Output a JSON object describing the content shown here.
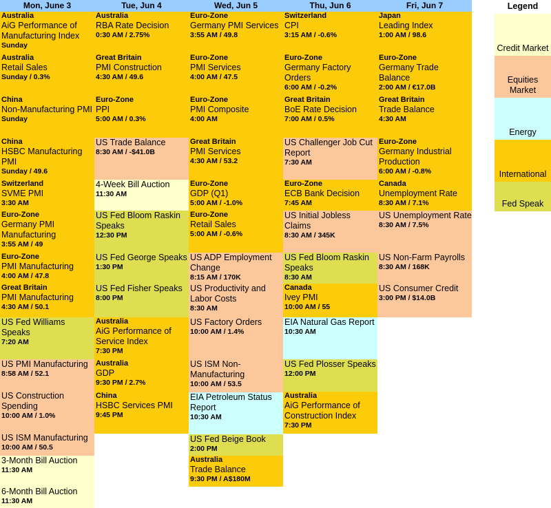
{
  "days": [
    "Mon, June 3",
    "Tue, Jun 4",
    "Wed, Jun 5",
    "Thu, Jun 6",
    "Fri, Jun 7"
  ],
  "legend": {
    "title": "Legend",
    "items": [
      {
        "label": "Credit Market",
        "color": "#ffffcc"
      },
      {
        "label": "Equities Market",
        "color": "#fcc89b"
      },
      {
        "label": "Energy",
        "color": "#ccffff"
      },
      {
        "label": "International",
        "color": "#fccb0a"
      },
      {
        "label": "Fed Speak",
        "color": "#dede50"
      }
    ]
  },
  "columns": [
    [
      {
        "region": "Australia",
        "title": "AiG Performance of Manufacturing Index",
        "time": "Sunday",
        "cat": "international"
      },
      {
        "region": "Australia",
        "title": "Retail Sales",
        "time": "Sunday / 0.3%",
        "cat": "international"
      },
      {
        "region": "China",
        "title": "Non-Manufacturing PMI",
        "time": "Sunday",
        "cat": "international"
      },
      {
        "region": "China",
        "title": " HSBC Manufacturing PMI",
        "time": "Sunday / 49.6",
        "cat": "international"
      },
      {
        "region": "Switzerland",
        "title": "SVME PMI",
        "time": "3:30 AM",
        "cat": "international"
      },
      {
        "region": "Euro-Zone",
        "title": "Germany PMI Manufacturing",
        "time": "3:55 AM / 49",
        "cat": "international"
      },
      {
        "region": "Euro-Zone",
        "title": "PMI Manufacturing",
        "time": "4:00 AM / 47.8",
        "cat": "international"
      },
      {
        "region": "Great Britain",
        "title": "PMI Manufacturing",
        "time": "4:30 AM / 50.1",
        "cat": "international"
      },
      {
        "region": "",
        "title": "US Fed Williams Speaks",
        "time": "7:20 AM",
        "cat": "fed"
      },
      {
        "region": "",
        "title": "US PMI Manufacturing",
        "time": "8:58 AM / 52.1",
        "cat": "equities"
      },
      {
        "region": "",
        "title": "US Construction Spending",
        "time": "10:00 AM / 1.0%",
        "cat": "equities"
      },
      {
        "region": "",
        "title": "US ISM Manufacturing",
        "time": "10:00 AM / 50.5",
        "cat": "equities"
      },
      {
        "region": "",
        "title": "3-Month Bill Auction",
        "time": "11:30 AM",
        "cat": "credit"
      },
      {
        "region": "",
        "title": "6-Month Bill Auction",
        "time": "11:30 AM",
        "cat": "credit"
      }
    ],
    [
      {
        "region": "Australia",
        "title": "RBA Rate Decision",
        "time": "0:30 AM / 2.75%",
        "cat": "international"
      },
      {
        "region": "Great Britain",
        "title": "PMI Construction",
        "time": "4:30 AM / 49.6",
        "cat": "international"
      },
      {
        "region": "Euro-Zone",
        "title": "PPI",
        "time": "5:00 AM / 0.3%",
        "cat": "international"
      },
      {
        "region": "",
        "title": "US Trade Balance",
        "time": "8:30 AM / -$41.0B",
        "cat": "equities"
      },
      {
        "region": "",
        "title": "4-Week Bill Auction",
        "time": "11:30 AM",
        "cat": "credit"
      },
      {
        "region": "",
        "title": "US Fed Bloom Raskin Speaks",
        "time": "12:30 PM",
        "cat": "fed"
      },
      {
        "region": "",
        "title": "US Fed George Speaks",
        "time": "1:30 PM",
        "cat": "fed"
      },
      {
        "region": "",
        "title": "US Fed Fisher Speaks",
        "time": "8:00 PM",
        "cat": "fed"
      },
      {
        "region": "Australia",
        "title": "AiG Performance of Service Index",
        "time": "7:30 PM",
        "cat": "international"
      },
      {
        "region": "Australia",
        "title": "GDP",
        "time": "9:30 PM / 2.7%",
        "cat": "international"
      },
      {
        "region": "China",
        "title": "HSBC Services PMI",
        "time": "9:45 PM",
        "cat": "international"
      }
    ],
    [
      {
        "region": "Euro-Zone",
        "title": "Germany PMI Services",
        "time": "3:55 AM / 49.8",
        "cat": "international"
      },
      {
        "region": "Euro-Zone",
        "title": "PMI Services",
        "time": "4:00 AM / 47.5",
        "cat": "international"
      },
      {
        "region": "Euro-Zone",
        "title": "PMI Composite",
        "time": "4:00 AM",
        "cat": "international"
      },
      {
        "region": "Great Britain",
        "title": "PMI Services",
        "time": "4:30 AM / 53.2",
        "cat": "international"
      },
      {
        "region": "Euro-Zone",
        "title": "GDP (Q1)",
        "time": "5:00 AM / -1.0%",
        "cat": "international"
      },
      {
        "region": "Euro-Zone",
        "title": "Retail Sales",
        "time": "5:00 AM / -0.6%",
        "cat": "international"
      },
      {
        "region": "",
        "title": "US ADP Employment Change",
        "time": "8:15 AM / 170K",
        "cat": "equities"
      },
      {
        "region": "",
        "title": "US Productivity and Labor Costs",
        "time": "8:30 AM",
        "cat": "equities"
      },
      {
        "region": "",
        "title": "US Factory Orders",
        "time": "10:00 AM / 1.4%",
        "cat": "equities"
      },
      {
        "region": "",
        "title": "US ISM Non-Manufacturing",
        "time": "10:00 AM / 53.5",
        "cat": "equities"
      },
      {
        "region": "",
        "title": "EIA Petroleum Status Report",
        "time": "10:30 AM",
        "cat": "energy"
      },
      {
        "region": "",
        "title": "US Fed Beige Book",
        "time": "2:00 PM",
        "cat": "fed"
      },
      {
        "region": "Australia",
        "title": "Trade Balance",
        "time": "9:30 PM / A$180M",
        "cat": "international"
      }
    ],
    [
      {
        "region": "Switzerland",
        "title": "CPI",
        "time": "3:15 AM / -0.6%",
        "cat": "international"
      },
      {
        "region": "Euro-Zone",
        "title": "Germany Factory Orders",
        "time": "6:00 AM / -0.2%",
        "cat": "international"
      },
      {
        "region": "Great Britain",
        "title": "BoE Rate Decision",
        "time": "7:00 AM / 0.5%",
        "cat": "international"
      },
      {
        "region": "",
        "title": "US Challenger Job Cut Report",
        "time": "7:30 AM",
        "cat": "equities"
      },
      {
        "region": "Euro-Zone",
        "title": "ECB Bank Decision",
        "time": "7:45 AM",
        "cat": "international"
      },
      {
        "region": "",
        "title": "US Initial Jobless Claims",
        "time": "8:30 AM / 345K",
        "cat": "equities"
      },
      {
        "region": "",
        "title": "US Fed Bloom Raskin Speaks",
        "time": "8:30 AM",
        "cat": "fed"
      },
      {
        "region": "Canada",
        "title": "Ivey PMI",
        "time": "10:00 AM / 55",
        "cat": "international"
      },
      {
        "region": "",
        "title": "EIA Natural Gas Report",
        "time": "10:30 AM",
        "cat": "energy"
      },
      {
        "region": "",
        "title": "US Fed Plosser Speaks",
        "time": "12:00 PM",
        "cat": "fed"
      },
      {
        "region": "Australia",
        "title": "AiG Performance of Construction Index",
        "time": "7:30 PM",
        "cat": "international"
      }
    ],
    [
      {
        "region": "Japan",
        "title": "Leading Index",
        "time": "1:00 AM / 98.6",
        "cat": "international"
      },
      {
        "region": "Euro-Zone",
        "title": "Germany Trade Balance",
        "time": "2:00 AM / €17.0B",
        "cat": "international"
      },
      {
        "region": "Great Britain",
        "title": "Trade Balance",
        "time": "4:30 AM",
        "cat": "international"
      },
      {
        "region": "Euro-Zone",
        "title": "Germany Industrial Production",
        "time": "6:00 AM / -0.8%",
        "cat": "international"
      },
      {
        "region": "Canada",
        "title": "Unemployment Rate",
        "time": "8:30 AM / 7.1%",
        "cat": "international"
      },
      {
        "region": "",
        "title": "US Unemployment Rate",
        "time": "8:30 AM / 7.5%",
        "cat": "equities"
      },
      {
        "region": "",
        "title": "US Non-Farm Payrolls",
        "time": "8:30 AM / 168K",
        "cat": "equities"
      },
      {
        "region": "",
        "title": "US Consumer Credit",
        "time": "3:00 PM / $14.0B",
        "cat": "equities"
      }
    ]
  ]
}
